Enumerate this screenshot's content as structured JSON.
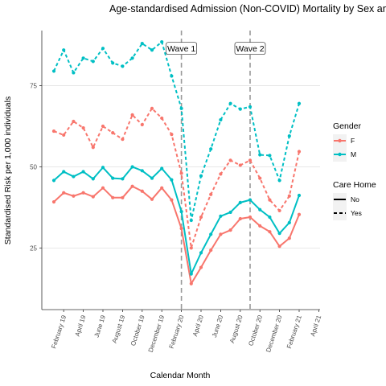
{
  "chart_data": {
    "type": "line",
    "title": "Age-standardised Admission (Non-COVID) Mortality by Sex and Care Home Status",
    "xlabel": "Calendar Month",
    "ylabel": "Standardised Risk per 1,000 individuals",
    "x_tick_labels": [
      "February 19",
      "April 19",
      "June 19",
      "August 19",
      "October 19",
      "December 19",
      "February 20",
      "April 20",
      "June 20",
      "August 20",
      "October 20",
      "December 20",
      "February 21",
      "April 21"
    ],
    "y_ticks": [
      25,
      50,
      75
    ],
    "ylim": [
      6,
      92
    ],
    "x": [
      "2019-01",
      "2019-02",
      "2019-03",
      "2019-04",
      "2019-05",
      "2019-06",
      "2019-07",
      "2019-08",
      "2019-09",
      "2019-10",
      "2019-11",
      "2019-12",
      "2020-01",
      "2020-02",
      "2020-03",
      "2020-04",
      "2020-05",
      "2020-06",
      "2020-07",
      "2020-08",
      "2020-09",
      "2020-10",
      "2020-11",
      "2020-12",
      "2021-01",
      "2021-02",
      "2021-03"
    ],
    "annotations": [
      {
        "label": "Wave 1",
        "x": "2020-02"
      },
      {
        "label": "Wave 2",
        "x": "2020-09"
      }
    ],
    "legend": {
      "gender_title": "Gender",
      "gender_items": [
        {
          "label": "F",
          "color": "#F8766D"
        },
        {
          "label": "M",
          "color": "#00BFC4"
        }
      ],
      "carehome_title": "Care Home",
      "carehome_items": [
        {
          "label": "No",
          "linetype": "solid"
        },
        {
          "label": "Yes",
          "linetype": "dashed"
        }
      ]
    },
    "grid": true,
    "series": [
      {
        "gender": "F",
        "care_home": "No",
        "color": "#F8766D",
        "dashed": false,
        "values": [
          39.2,
          42.0,
          41.0,
          42.0,
          40.8,
          43.5,
          40.5,
          40.5,
          44.0,
          42.5,
          40.0,
          43.5,
          39.8,
          31.0,
          14.0,
          19.0,
          24.3,
          29.2,
          30.5,
          34.0,
          34.5,
          31.8,
          30.0,
          25.5,
          28.0,
          35.3,
          null
        ]
      },
      {
        "gender": "M",
        "care_home": "No",
        "color": "#00BFC4",
        "dashed": false,
        "values": [
          45.8,
          48.5,
          47.0,
          48.5,
          46.3,
          49.8,
          46.5,
          46.3,
          50.0,
          48.8,
          46.5,
          49.5,
          46.0,
          36.2,
          17.0,
          23.5,
          29.2,
          34.8,
          36.0,
          39.0,
          39.8,
          36.8,
          34.5,
          29.5,
          32.8,
          41.2,
          null
        ]
      },
      {
        "gender": "F",
        "care_home": "Yes",
        "color": "#F8766D",
        "dashed": true,
        "values": [
          61.0,
          59.8,
          64.0,
          62.0,
          56.0,
          62.5,
          60.5,
          58.5,
          66.0,
          63.0,
          68.0,
          65.0,
          60.0,
          48.0,
          25.0,
          34.5,
          41.5,
          47.8,
          52.0,
          50.5,
          52.0,
          46.5,
          39.8,
          36.5,
          41.0,
          54.7,
          null
        ]
      },
      {
        "gender": "M",
        "care_home": "Yes",
        "color": "#00BFC4",
        "dashed": true,
        "values": [
          79.5,
          86.0,
          79.0,
          83.5,
          82.5,
          86.5,
          82.0,
          81.0,
          83.5,
          88.0,
          86.0,
          88.5,
          78.0,
          68.0,
          33.5,
          47.2,
          55.5,
          64.5,
          69.5,
          67.8,
          68.5,
          53.7,
          53.5,
          45.8,
          59.5,
          69.5,
          null
        ]
      }
    ]
  }
}
